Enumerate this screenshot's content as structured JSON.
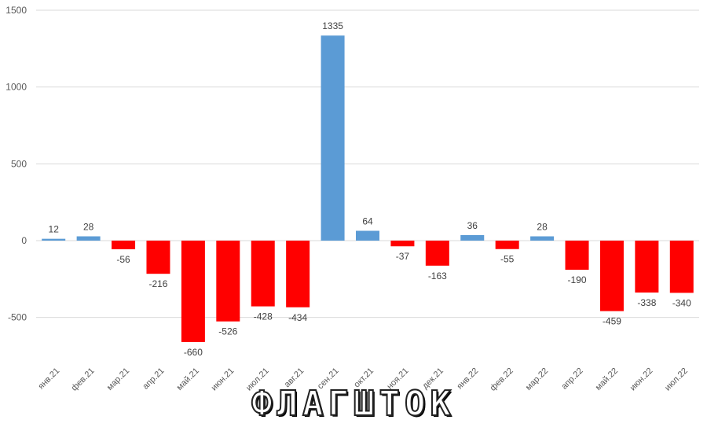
{
  "chart_data": {
    "type": "bar",
    "title": "",
    "xlabel": "",
    "ylabel": "",
    "ylim": [
      -750,
      1500
    ],
    "yticks": [
      1500,
      1000,
      500,
      0,
      -500
    ],
    "grid": true,
    "categories": [
      "янв.21",
      "фев.21",
      "мар.21",
      "апр.21",
      "май.21",
      "июн.21",
      "июл.21",
      "авг.21",
      "сен.21",
      "окт.21",
      "ноя.21",
      "дек.21",
      "янв.22",
      "фев.22",
      "мар.22",
      "апр.22",
      "май.22",
      "июн.22",
      "июл.22"
    ],
    "values": [
      12,
      28,
      -56,
      -216,
      -660,
      -526,
      -428,
      -434,
      1335,
      64,
      -37,
      -163,
      36,
      -55,
      28,
      -190,
      -459,
      -338,
      -340
    ],
    "positive_color": "#5b9bd5",
    "negative_color": "#ff0000",
    "grid_color": "#d9d9d9"
  },
  "watermark": "ФЛАГШТОК"
}
